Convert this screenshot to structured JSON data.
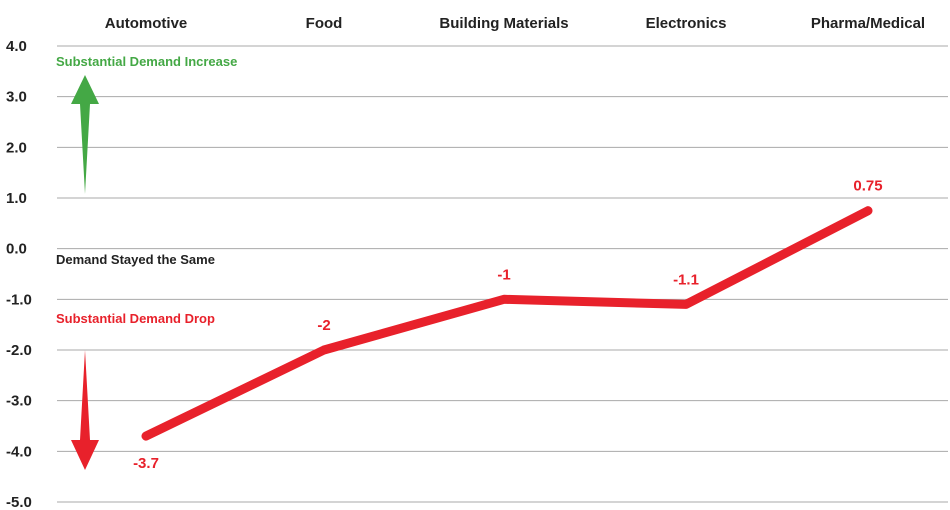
{
  "chart_data": {
    "type": "line",
    "categories": [
      "Automotive",
      "Food",
      "Building Materials",
      "Electronics",
      "Pharma/Medical"
    ],
    "values": [
      -3.7,
      -2,
      -1,
      -1.1,
      0.75
    ],
    "data_labels": [
      "-3.7",
      "-2",
      "-1",
      "-1.1",
      "0.75"
    ],
    "ylim": [
      -5,
      4
    ],
    "yticks": [
      4,
      3,
      2,
      1,
      0,
      -1,
      -2,
      -3,
      -4,
      -5
    ],
    "ytick_labels": [
      "4.0",
      "3.0",
      "2.0",
      "1.0",
      "0.0",
      "-1.0",
      "-2.0",
      "-3.0",
      "-4.0",
      "-5.0"
    ],
    "grid": true,
    "line_color": "#e8212b",
    "annotations": {
      "increase": "Substantial Demand Increase",
      "same": "Demand Stayed the Same",
      "drop": "Substantial Demand Drop"
    },
    "colors": {
      "increase": "#44a845",
      "drop": "#e8212b",
      "neutral": "#222222",
      "grid": "#aaaaaa"
    }
  }
}
